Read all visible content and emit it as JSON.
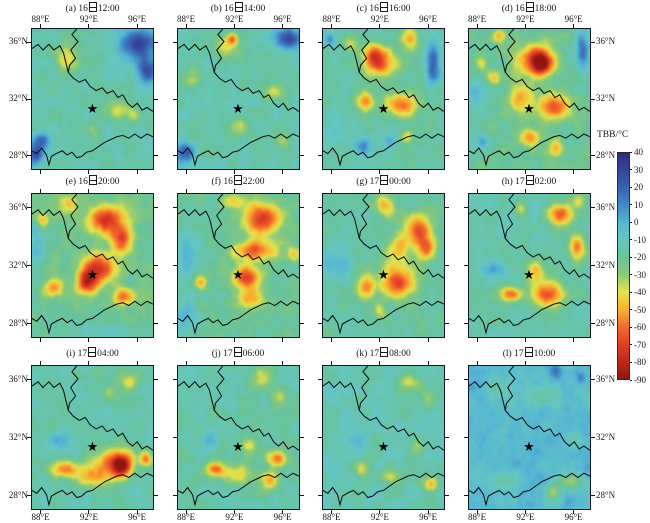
{
  "figure": {
    "description": "12-panel satellite TBB evolution maps with shared colorbar"
  },
  "axis": {
    "lon_labels": [
      "88°E",
      "92°E",
      "96°E"
    ],
    "lat_labels": [
      "36°N",
      "32°N",
      "28°N"
    ]
  },
  "colorbar": {
    "title": "TBB/°C",
    "tick_labels": [
      "40",
      "30",
      "20",
      "10",
      "0",
      "-10",
      "-20",
      "-30",
      "-40",
      "-50",
      "-60",
      "-70",
      "-80",
      "-90"
    ],
    "palette": [
      {
        "value": 40,
        "color": "#312c7c"
      },
      {
        "value": 30,
        "color": "#34459c"
      },
      {
        "value": 20,
        "color": "#3a63b2"
      },
      {
        "value": 10,
        "color": "#4289c4"
      },
      {
        "value": 0,
        "color": "#55b6d4"
      },
      {
        "value": -10,
        "color": "#66c6c2"
      },
      {
        "value": -20,
        "color": "#68c39b"
      },
      {
        "value": -30,
        "color": "#8cc977"
      },
      {
        "value": -40,
        "color": "#e5e44e"
      },
      {
        "value": -50,
        "color": "#f8b22e"
      },
      {
        "value": -60,
        "color": "#f26a2c"
      },
      {
        "value": -70,
        "color": "#e23e25"
      },
      {
        "value": -80,
        "color": "#bf281d"
      },
      {
        "value": -90,
        "color": "#8f1712"
      }
    ]
  },
  "chart_data": {
    "type": "heatmap",
    "value_unit": "TBB/°C",
    "value_range": [
      -90,
      40
    ],
    "day_char": "日",
    "x": {
      "label": "longitude",
      "unit": "°E",
      "ticks": [
        88,
        92,
        96
      ],
      "range": [
        87.2,
        97.4
      ]
    },
    "y": {
      "label": "latitude",
      "unit": "°N",
      "ticks": [
        36,
        32,
        28
      ],
      "range": [
        27,
        37
      ]
    },
    "star": {
      "lon": 92.3,
      "lat": 31.3
    },
    "feature_format": [
      "lon",
      "lat",
      "radius_lon_deg",
      "radius_lat_deg",
      "tbb_peak"
    ],
    "panels": [
      {
        "id": "a",
        "label": "(a)",
        "day": "16",
        "time": "12:00",
        "title": "(a) 16日12:00",
        "background_tbb": -16,
        "features": [
          [
            96.2,
            36.0,
            1.6,
            1.1,
            30
          ],
          [
            96.9,
            34.0,
            0.9,
            0.9,
            25
          ],
          [
            90.1,
            35.0,
            0.9,
            1.1,
            -42
          ],
          [
            94.4,
            31.3,
            1.2,
            0.7,
            -36
          ],
          [
            95.9,
            30.8,
            0.6,
            0.6,
            -33
          ],
          [
            92.3,
            29.8,
            0.6,
            0.6,
            -32
          ],
          [
            88.0,
            29.0,
            0.8,
            0.6,
            18
          ],
          [
            87.5,
            28.0,
            0.7,
            0.7,
            24
          ]
        ]
      },
      {
        "id": "b",
        "label": "(b)",
        "day": "16",
        "time": "14:00",
        "title": "(b) 16日14:00",
        "background_tbb": -16,
        "features": [
          [
            96.5,
            36.3,
            1.1,
            0.8,
            26
          ],
          [
            91.3,
            35.7,
            1.0,
            0.8,
            -45
          ],
          [
            91.8,
            36.3,
            0.4,
            0.4,
            -52
          ],
          [
            88.4,
            33.5,
            0.7,
            0.7,
            -36
          ],
          [
            95.4,
            32.5,
            0.9,
            0.6,
            -38
          ],
          [
            92.3,
            30.0,
            0.8,
            0.8,
            -35
          ],
          [
            95.9,
            29.0,
            0.6,
            0.6,
            -33
          ],
          [
            87.8,
            28.2,
            0.8,
            0.8,
            18
          ]
        ]
      },
      {
        "id": "c",
        "label": "(c)",
        "day": "16",
        "time": "16:00",
        "title": "(c) 16日16:00",
        "background_tbb": -18,
        "features": [
          [
            92.2,
            34.5,
            1.3,
            1.0,
            -58
          ],
          [
            91.5,
            35.2,
            0.8,
            0.8,
            -52
          ],
          [
            93.8,
            31.6,
            1.3,
            0.8,
            -60
          ],
          [
            90.8,
            31.8,
            0.7,
            0.7,
            -52
          ],
          [
            94.5,
            36.3,
            0.8,
            0.8,
            -45
          ],
          [
            89.5,
            36.0,
            0.6,
            0.6,
            -40
          ],
          [
            96.5,
            34.5,
            0.6,
            1.5,
            18
          ],
          [
            87.8,
            36.3,
            0.5,
            0.5,
            12
          ],
          [
            90.5,
            28.6,
            0.8,
            0.6,
            8
          ],
          [
            92.8,
            29.0,
            0.5,
            0.5,
            6
          ],
          [
            88.5,
            30.0,
            1.0,
            1.0,
            -5
          ],
          [
            94.3,
            29.3,
            0.5,
            0.5,
            -45
          ]
        ]
      },
      {
        "id": "d",
        "label": "(d)",
        "day": "16",
        "time": "18:00",
        "title": "(d) 16日18:00",
        "background_tbb": -20,
        "features": [
          [
            92.8,
            34.8,
            1.6,
            1.1,
            -65
          ],
          [
            93.3,
            34.5,
            0.8,
            0.8,
            -70
          ],
          [
            94.3,
            31.5,
            1.3,
            0.9,
            -68
          ],
          [
            91.5,
            32.0,
            1.0,
            1.0,
            -52
          ],
          [
            89.8,
            36.5,
            0.5,
            0.5,
            -50
          ],
          [
            88.2,
            34.5,
            0.5,
            0.5,
            -48
          ],
          [
            89.3,
            33.5,
            0.5,
            0.5,
            -45
          ],
          [
            92.3,
            29.2,
            0.8,
            0.6,
            -58
          ],
          [
            94.5,
            28.5,
            0.6,
            0.6,
            -50
          ],
          [
            96.8,
            35.5,
            0.6,
            1.3,
            20
          ],
          [
            88.3,
            29.0,
            0.5,
            0.5,
            8
          ],
          [
            87.8,
            32.5,
            0.8,
            1.5,
            -5
          ]
        ]
      },
      {
        "id": "e",
        "label": "(e)",
        "day": "16",
        "time": "20:00",
        "title": "(e) 16日20:00",
        "background_tbb": -22,
        "features": [
          [
            93.4,
            35.2,
            1.5,
            1.0,
            -72
          ],
          [
            94.8,
            33.8,
            0.9,
            0.9,
            -68
          ],
          [
            92.8,
            31.8,
            1.3,
            1.0,
            -75
          ],
          [
            91.8,
            30.8,
            0.9,
            0.9,
            -70
          ],
          [
            88.1,
            35.2,
            0.5,
            0.5,
            -52
          ],
          [
            89.0,
            30.5,
            0.8,
            0.6,
            -55
          ],
          [
            94.9,
            29.8,
            0.9,
            0.6,
            -58
          ],
          [
            90.2,
            36.3,
            0.7,
            0.7,
            -45
          ],
          [
            87.5,
            33.5,
            0.7,
            1.5,
            -2
          ],
          [
            92.3,
            27.4,
            3.0,
            0.7,
            -10
          ]
        ]
      },
      {
        "id": "f",
        "label": "(f)",
        "day": "16",
        "time": "22:00",
        "title": "(f) 16日22:00",
        "background_tbb": -20,
        "features": [
          [
            94.3,
            35.3,
            1.6,
            1.1,
            -72
          ],
          [
            93.6,
            33.0,
            1.8,
            0.7,
            -65
          ],
          [
            93.0,
            31.2,
            1.1,
            0.8,
            -70
          ],
          [
            93.3,
            29.7,
            1.3,
            0.7,
            -48
          ],
          [
            91.9,
            36.5,
            0.9,
            0.5,
            -45
          ],
          [
            89.1,
            30.8,
            0.5,
            0.5,
            -52
          ],
          [
            87.9,
            33.0,
            0.9,
            1.8,
            0
          ],
          [
            96.9,
            32.8,
            0.5,
            0.5,
            -45
          ],
          [
            87.7,
            28.5,
            1.2,
            1.2,
            -2
          ]
        ]
      },
      {
        "id": "g",
        "label": "(g)",
        "day": "17",
        "time": "00:00",
        "title": "(g) 17日00:00",
        "background_tbb": -18,
        "features": [
          [
            93.5,
            30.8,
            1.5,
            1.0,
            -70
          ],
          [
            95.2,
            34.5,
            1.2,
            1.0,
            -62
          ],
          [
            95.9,
            33.2,
            0.8,
            0.8,
            -58
          ],
          [
            92.5,
            36.2,
            0.8,
            0.8,
            -50
          ],
          [
            93.5,
            33.0,
            1.2,
            1.2,
            -45
          ],
          [
            90.8,
            30.5,
            0.8,
            0.8,
            -52
          ],
          [
            88.3,
            32.0,
            1.2,
            1.2,
            -2
          ],
          [
            92.0,
            28.8,
            0.5,
            0.5,
            -38
          ]
        ]
      },
      {
        "id": "h",
        "label": "(h)",
        "day": "17",
        "time": "02:00",
        "title": "(h) 17日02:00",
        "background_tbb": -16,
        "features": [
          [
            93.8,
            30.0,
            1.4,
            0.9,
            -68
          ],
          [
            90.7,
            30.0,
            1.0,
            0.5,
            -58
          ],
          [
            94.9,
            35.6,
            1.0,
            0.7,
            -62
          ],
          [
            96.3,
            33.3,
            0.7,
            0.9,
            -60
          ],
          [
            91.5,
            36.0,
            0.5,
            0.5,
            -40
          ],
          [
            96.5,
            36.6,
            0.6,
            0.6,
            -38
          ],
          [
            92.8,
            31.5,
            0.8,
            0.8,
            -45
          ],
          [
            89.3,
            31.7,
            1.2,
            0.6,
            2
          ]
        ]
      },
      {
        "id": "i",
        "label": "(i)",
        "day": "17",
        "time": "04:00",
        "title": "(i) 17日04:00",
        "background_tbb": -16,
        "features": [
          [
            94.1,
            30.3,
            1.5,
            1.0,
            -62
          ],
          [
            94.8,
            30.0,
            0.8,
            0.8,
            -65
          ],
          [
            90.0,
            29.8,
            1.2,
            0.6,
            -55
          ],
          [
            92.3,
            29.3,
            1.5,
            0.8,
            -45
          ],
          [
            95.4,
            36.0,
            1.0,
            0.7,
            -40
          ],
          [
            93.8,
            35.2,
            0.6,
            0.6,
            -35
          ],
          [
            96.8,
            30.5,
            0.5,
            0.5,
            -58
          ],
          [
            89.5,
            31.8,
            1.2,
            0.6,
            -2
          ]
        ]
      },
      {
        "id": "j",
        "label": "(j)",
        "day": "17",
        "time": "06:00",
        "title": "(j) 17日06:00",
        "background_tbb": -16,
        "features": [
          [
            90.3,
            29.8,
            0.8,
            0.5,
            -55
          ],
          [
            92.0,
            29.5,
            1.5,
            0.7,
            -42
          ],
          [
            95.6,
            30.5,
            0.9,
            0.6,
            -58
          ],
          [
            95.0,
            29.0,
            0.7,
            0.7,
            -50
          ],
          [
            93.3,
            31.3,
            0.7,
            0.7,
            -40
          ],
          [
            94.3,
            36.2,
            0.8,
            0.8,
            -35
          ],
          [
            95.7,
            34.8,
            0.7,
            0.7,
            -38
          ],
          [
            89.8,
            31.8,
            0.8,
            0.5,
            -2
          ]
        ]
      },
      {
        "id": "k",
        "label": "(k)",
        "day": "17",
        "time": "08:00",
        "title": "(k) 17日08:00",
        "background_tbb": -14,
        "features": [
          [
            94.5,
            35.8,
            1.0,
            0.6,
            -35
          ],
          [
            96.0,
            34.7,
            0.6,
            0.6,
            -33
          ],
          [
            90.5,
            29.8,
            0.6,
            0.6,
            -35
          ],
          [
            92.8,
            29.3,
            0.8,
            0.5,
            -38
          ],
          [
            96.3,
            28.8,
            0.7,
            0.5,
            -48
          ],
          [
            95.2,
            31.3,
            0.6,
            0.6,
            -33
          ],
          [
            90.2,
            31.8,
            0.9,
            0.5,
            2
          ]
        ]
      },
      {
        "id": "l",
        "label": "(l)",
        "day": "17",
        "time": "10:00",
        "title": "(l) 17日10:00",
        "background_tbb": -3,
        "features": [
          [
            89.8,
            35.5,
            1.0,
            1.0,
            -15
          ],
          [
            93.3,
            35.0,
            1.3,
            0.8,
            -18
          ],
          [
            90.3,
            29.0,
            1.5,
            0.7,
            -14
          ],
          [
            95.7,
            28.9,
            0.9,
            0.5,
            -33
          ],
          [
            94.3,
            28.2,
            0.6,
            0.6,
            -30
          ],
          [
            94.5,
            36.7,
            0.5,
            0.5,
            16
          ],
          [
            96.6,
            36.2,
            0.4,
            0.4,
            14
          ],
          [
            96.0,
            32.0,
            0.7,
            0.7,
            -12
          ]
        ]
      }
    ]
  }
}
